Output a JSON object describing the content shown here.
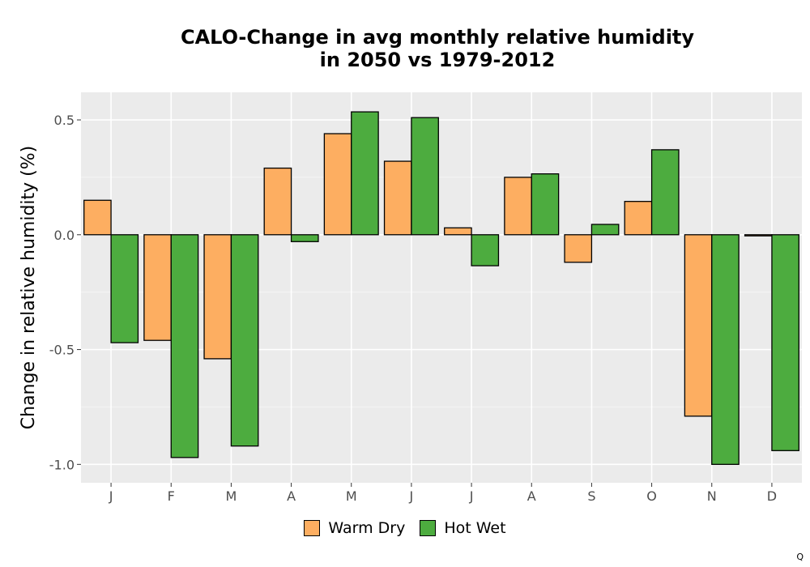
{
  "chart_data": {
    "type": "bar",
    "title_line1": "CALO-Change in avg monthly relative humidity",
    "title_line2": "in 2050 vs 1979-2012",
    "xlabel": "",
    "ylabel": "Change in relative humidity (%)",
    "ylim": [
      -1.08,
      0.62
    ],
    "yticks": [
      0.5,
      0.0,
      -0.5,
      -1.0
    ],
    "ytick_labels": [
      "0.5",
      "0.0",
      "-0.5",
      "-1.0"
    ],
    "grid": true,
    "legend_position": "bottom",
    "categories": [
      "J",
      "F",
      "M",
      "A",
      "M",
      "J",
      "J",
      "A",
      "S",
      "O",
      "N",
      "D"
    ],
    "series": [
      {
        "name": "Warm Dry",
        "color": "#FDAE61",
        "values": [
          0.15,
          -0.46,
          -0.54,
          0.29,
          0.44,
          0.32,
          0.03,
          0.25,
          -0.12,
          0.145,
          -0.79,
          -0.005
        ]
      },
      {
        "name": "Hot Wet",
        "color": "#4DAC3F",
        "values": [
          -0.47,
          -0.97,
          -0.92,
          -0.03,
          0.535,
          0.51,
          -0.135,
          0.265,
          0.045,
          0.37,
          -1.0,
          -0.94
        ]
      }
    ]
  },
  "corner_mark": "Q"
}
